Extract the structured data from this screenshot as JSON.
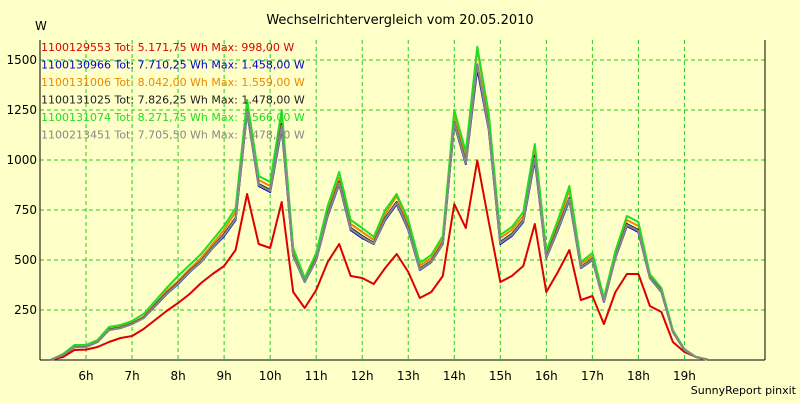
{
  "chart_data": {
    "type": "line",
    "title": "Wechselrichtervergleich vom 20.05.2010",
    "ylabel": "W",
    "xlabel": "",
    "footer": "SunnyReport pinxit",
    "ylim": [
      0,
      1600
    ],
    "xlim": [
      5.0,
      20.75
    ],
    "yticks": [
      250,
      500,
      750,
      1000,
      1250,
      1500
    ],
    "ytick_labels": [
      "250",
      "500",
      "750",
      "1000",
      "1250",
      "1500"
    ],
    "xticks": [
      6,
      7,
      8,
      9,
      10,
      11,
      12,
      13,
      14,
      15,
      16,
      17,
      18,
      19
    ],
    "xtick_labels": [
      "6h",
      "7h",
      "8h",
      "9h",
      "10h",
      "11h",
      "12h",
      "13h",
      "14h",
      "15h",
      "16h",
      "17h",
      "18h",
      "19h"
    ],
    "grid": true,
    "legend_position": "top-left",
    "x": [
      5.25,
      5.5,
      5.75,
      6,
      6.25,
      6.5,
      6.75,
      7,
      7.25,
      7.5,
      7.75,
      8,
      8.25,
      8.5,
      8.75,
      9,
      9.25,
      9.5,
      9.75,
      10,
      10.25,
      10.5,
      10.75,
      11,
      11.25,
      11.5,
      11.75,
      12,
      12.25,
      12.5,
      12.75,
      13,
      13.25,
      13.5,
      13.75,
      14,
      14.25,
      14.5,
      14.75,
      15,
      15.25,
      15.5,
      15.75,
      16,
      16.25,
      16.5,
      16.75,
      17,
      17.25,
      17.5,
      17.75,
      18,
      18.25,
      18.5,
      18.75,
      19,
      19.25,
      19.5
    ],
    "series": [
      {
        "name": "1100129553 Tot: 5.171,75 Wh Max: 998,00 W",
        "color": "#dd0000",
        "values": [
          2,
          15,
          50,
          52,
          65,
          90,
          110,
          120,
          155,
          200,
          245,
          285,
          330,
          385,
          430,
          470,
          550,
          830,
          580,
          560,
          790,
          340,
          260,
          350,
          490,
          580,
          420,
          410,
          380,
          460,
          530,
          440,
          310,
          340,
          420,
          780,
          660,
          998,
          690,
          390,
          420,
          470,
          680,
          340,
          440,
          550,
          300,
          320,
          180,
          340,
          430,
          430,
          270,
          240,
          90,
          40,
          15,
          2
        ]
      },
      {
        "name": "1100130966 Tot: 7.710,25 Wh Max: 1.458,00 W",
        "color": "#0000cc",
        "values": [
          2,
          25,
          65,
          65,
          90,
          150,
          160,
          180,
          210,
          270,
          330,
          380,
          440,
          490,
          560,
          620,
          700,
          1240,
          870,
          840,
          1160,
          520,
          390,
          500,
          720,
          880,
          650,
          610,
          580,
          700,
          780,
          650,
          450,
          490,
          580,
          1180,
          980,
          1458,
          1150,
          580,
          620,
          690,
          1000,
          510,
          650,
          800,
          460,
          500,
          290,
          510,
          670,
          640,
          410,
          340,
          140,
          50,
          15,
          2
        ]
      },
      {
        "name": "1100131006 Tot: 8.042,00 Wh Max: 1.559,00 W",
        "color": "#ee8800",
        "values": [
          2,
          25,
          70,
          70,
          95,
          155,
          165,
          185,
          215,
          280,
          345,
          395,
          455,
          510,
          580,
          650,
          740,
          1280,
          900,
          870,
          1230,
          540,
          400,
          520,
          750,
          910,
          680,
          640,
          600,
          730,
          820,
          680,
          470,
          510,
          600,
          1230,
          1020,
          1559,
          1200,
          610,
          650,
          720,
          1050,
          530,
          680,
          850,
          480,
          520,
          300,
          530,
          700,
          670,
          420,
          350,
          145,
          50,
          15,
          2
        ]
      },
      {
        "name": "1100131025 Tot: 7.826,25 Wh Max: 1.478,00 W",
        "color": "#222222",
        "values": [
          2,
          25,
          65,
          66,
          92,
          152,
          162,
          182,
          212,
          275,
          335,
          385,
          445,
          495,
          565,
          630,
          710,
          1250,
          880,
          850,
          1180,
          525,
          392,
          505,
          730,
          890,
          660,
          620,
          585,
          710,
          790,
          660,
          455,
          495,
          585,
          1190,
          990,
          1478,
          1160,
          590,
          630,
          700,
          1020,
          515,
          660,
          810,
          465,
          505,
          292,
          515,
          680,
          650,
          415,
          345,
          142,
          50,
          15,
          2
        ]
      },
      {
        "name": "1100131074 Tot: 8.271,75 Wh Max: 1.566,00 W",
        "color": "#22dd22",
        "values": [
          3,
          30,
          75,
          75,
          100,
          165,
          175,
          195,
          230,
          295,
          360,
          420,
          475,
          530,
          600,
          670,
          760,
          1300,
          920,
          890,
          1250,
          560,
          410,
          535,
          770,
          940,
          700,
          660,
          615,
          750,
          830,
          700,
          485,
          525,
          620,
          1250,
          1040,
          1566,
          1230,
          625,
          665,
          740,
          1080,
          545,
          700,
          870,
          490,
          535,
          310,
          545,
          720,
          690,
          430,
          360,
          150,
          55,
          15,
          2
        ]
      },
      {
        "name": "1100213451 Tot: 7.705,50 Wh Max: 1.478,00 W",
        "color": "#888888",
        "values": [
          2,
          25,
          64,
          65,
          90,
          150,
          160,
          180,
          210,
          272,
          332,
          382,
          442,
          492,
          562,
          625,
          705,
          1245,
          875,
          845,
          1170,
          522,
          390,
          502,
          725,
          885,
          655,
          615,
          582,
          705,
          785,
          655,
          452,
          492,
          582,
          1185,
          985,
          1478,
          1155,
          585,
          625,
          695,
          1010,
          512,
          655,
          805,
          462,
          502,
          291,
          512,
          675,
          645,
          412,
          342,
          141,
          50,
          15,
          2
        ]
      }
    ]
  }
}
